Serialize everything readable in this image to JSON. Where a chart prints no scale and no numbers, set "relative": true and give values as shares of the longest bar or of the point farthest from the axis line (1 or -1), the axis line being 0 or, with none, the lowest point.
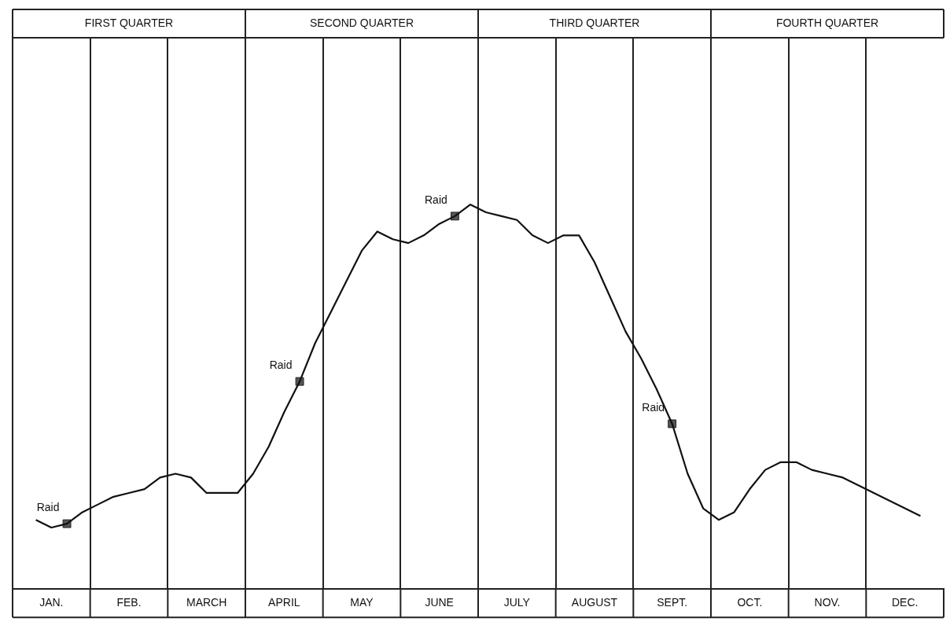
{
  "chart_data": {
    "type": "line",
    "relative": true,
    "grid": "x",
    "legend": false,
    "categories": [
      null,
      null,
      "JAN.",
      null,
      null,
      null,
      null,
      "FEB.",
      null,
      null,
      null,
      null,
      "MARCH",
      null,
      null,
      null,
      null,
      "APRIL",
      null,
      null,
      null,
      null,
      "MAY",
      null,
      null,
      null,
      null,
      "JUNE",
      null,
      null,
      null,
      null,
      "JULY",
      null,
      null,
      null,
      null,
      "AUGUST",
      null,
      null,
      null,
      null,
      "SEPT.",
      null,
      null,
      null,
      null,
      "OCT.",
      null,
      null,
      null,
      null,
      "NOV.",
      null,
      null,
      null,
      null,
      "DEC.",
      null,
      null
    ],
    "annotations": [
      "FIRST QUARTER",
      "SECOND QUARTER",
      "THIRD QUARTER",
      "FOURTH QUARTER"
    ],
    "series": [
      {
        "type": "line",
        "color": "#111111",
        "marker": "none",
        "values": [
          null,
          0.18,
          0.16,
          0.17,
          0.2,
          0.22,
          0.24,
          0.25,
          0.26,
          0.29,
          0.3,
          0.29,
          0.25,
          0.25,
          0.25,
          0.3,
          0.37,
          0.46,
          0.54,
          0.64,
          0.72,
          0.8,
          0.88,
          0.93,
          0.91,
          0.9,
          0.92,
          0.95,
          0.97,
          1.0,
          0.98,
          0.97,
          0.96,
          0.92,
          0.9,
          0.92,
          0.92,
          0.85,
          0.76,
          0.67,
          0.6,
          0.52,
          0.43,
          0.3,
          0.21,
          0.18,
          0.2,
          0.26,
          0.31,
          0.33,
          0.33,
          0.31,
          0.3,
          0.29,
          0.27,
          0.25,
          0.23,
          0.21,
          0.19,
          null
        ]
      },
      {
        "type": "scatter",
        "name": "Raid",
        "color": "#555555",
        "marker": "square",
        "values": [
          null,
          null,
          null,
          0.17,
          null,
          null,
          null,
          null,
          null,
          null,
          null,
          null,
          null,
          null,
          null,
          null,
          null,
          null,
          0.54,
          null,
          null,
          null,
          null,
          null,
          null,
          null,
          null,
          null,
          0.97,
          null,
          null,
          null,
          null,
          null,
          null,
          null,
          null,
          null,
          null,
          null,
          null,
          null,
          0.43,
          null,
          null,
          null,
          null,
          null,
          null,
          null,
          null,
          null,
          null,
          null,
          null,
          null,
          null,
          null,
          null,
          null
        ]
      }
    ]
  }
}
